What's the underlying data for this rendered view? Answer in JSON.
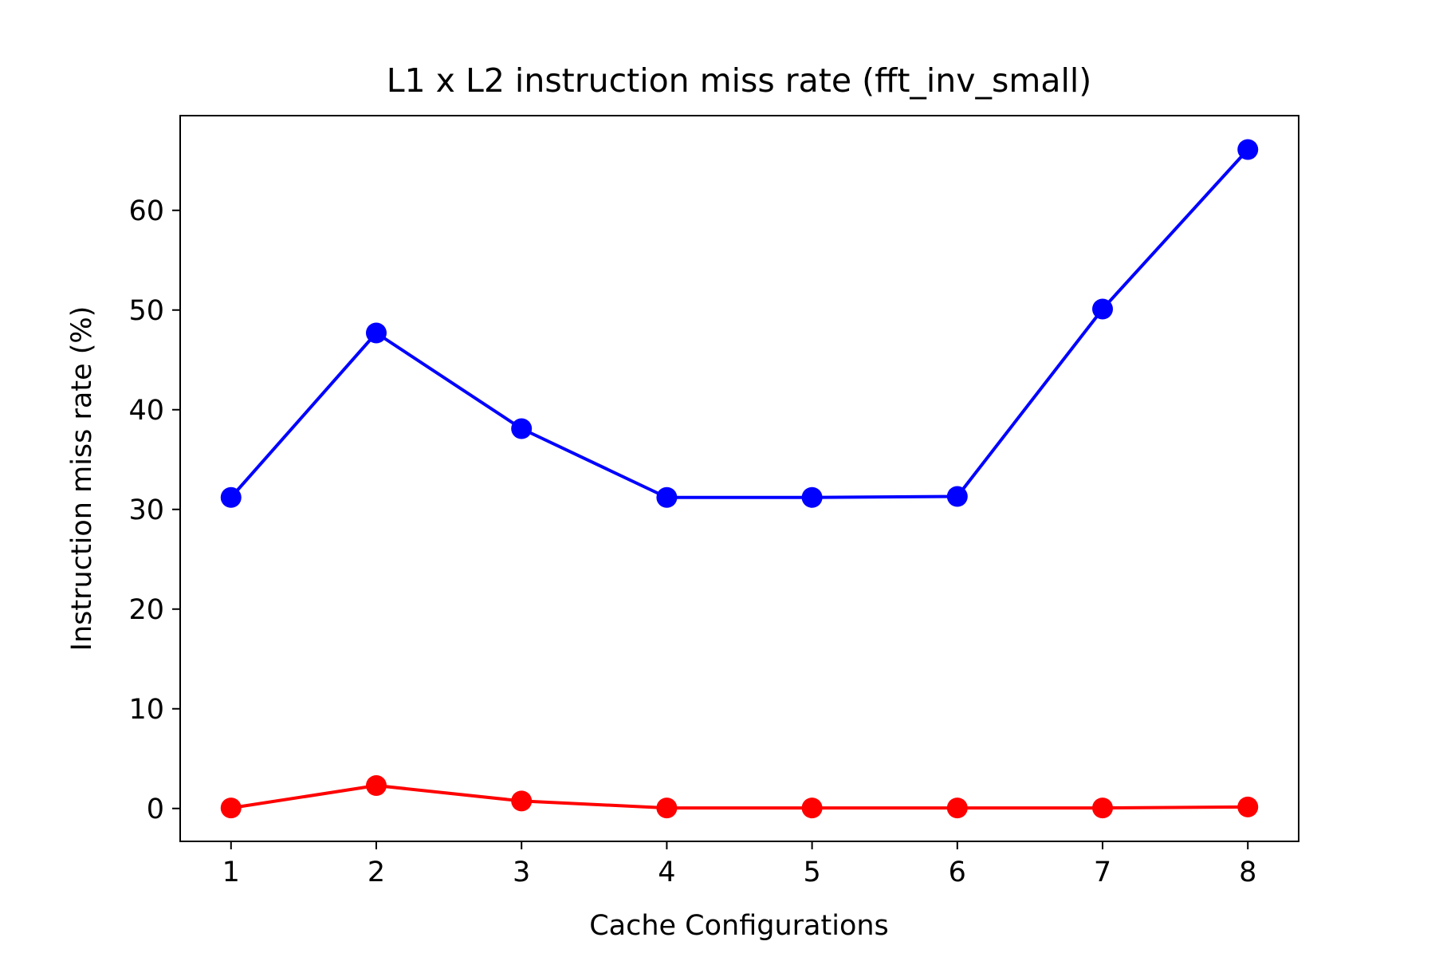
{
  "chart_data": {
    "type": "line",
    "title": "L1 x L2 instruction miss rate (fft_inv_small)",
    "xlabel": "Cache Configurations",
    "ylabel": "Instruction miss rate (%)",
    "x": [
      1,
      2,
      3,
      4,
      5,
      6,
      7,
      8
    ],
    "x_tick_labels": [
      "1",
      "2",
      "3",
      "4",
      "5",
      "6",
      "7",
      "8"
    ],
    "y_ticks": [
      0,
      10,
      20,
      30,
      40,
      50,
      60
    ],
    "y_tick_labels": [
      "0",
      "10",
      "20",
      "30",
      "40",
      "50",
      "60"
    ],
    "xlim": [
      0.65,
      8.35
    ],
    "ylim": [
      -3.3,
      69.5
    ],
    "grid": false,
    "series": [
      {
        "color": "#0000ff",
        "values": [
          31.2,
          47.7,
          38.1,
          31.2,
          31.2,
          31.3,
          50.1,
          66.1
        ]
      },
      {
        "color": "#ff0000",
        "values": [
          0.05,
          2.3,
          0.75,
          0.05,
          0.05,
          0.05,
          0.05,
          0.15
        ]
      }
    ]
  }
}
